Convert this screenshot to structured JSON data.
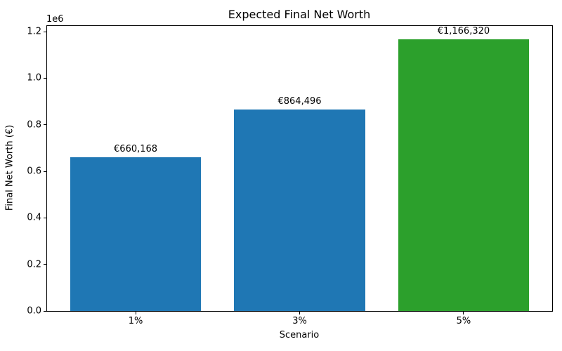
{
  "chart_data": {
    "type": "bar",
    "title": "Expected Final Net Worth",
    "xlabel": "Scenario",
    "ylabel": "Final Net Worth (€)",
    "y_offset_label": "1e6",
    "categories": [
      "1%",
      "3%",
      "5%"
    ],
    "values": [
      660168,
      864496,
      1166320
    ],
    "bar_labels": [
      "€660,168",
      "€864,496",
      "€1,166,320"
    ],
    "bar_colors": [
      "#1f77b4",
      "#1f77b4",
      "#2ca02c"
    ],
    "ylim": [
      0,
      1224636
    ],
    "xlim": [
      -0.54,
      2.54
    ],
    "bar_width_units": 0.8,
    "yticks": [
      {
        "value": 0,
        "label": "0.0"
      },
      {
        "value": 200000,
        "label": "0.2"
      },
      {
        "value": 400000,
        "label": "0.4"
      },
      {
        "value": 600000,
        "label": "0.6"
      },
      {
        "value": 800000,
        "label": "0.8"
      },
      {
        "value": 1000000,
        "label": "1.0"
      },
      {
        "value": 1200000,
        "label": "1.2"
      }
    ],
    "grid": false,
    "legend": null
  }
}
